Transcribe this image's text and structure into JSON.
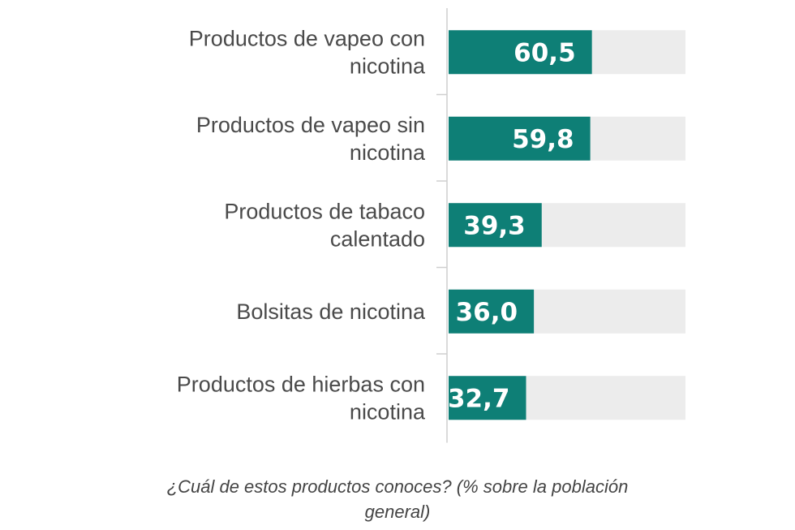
{
  "chart_data": {
    "type": "bar",
    "orientation": "horizontal",
    "categories": [
      [
        "Productos de vapeo con",
        "nicotina"
      ],
      [
        "Productos de vapeo sin",
        "nicotina"
      ],
      [
        "Productos de tabaco",
        "calentado"
      ],
      [
        "Bolsitas de nicotina"
      ],
      [
        "Productos de hierbas con",
        "nicotina"
      ]
    ],
    "values": [
      60.5,
      59.8,
      39.3,
      36.0,
      32.7
    ],
    "value_labels": [
      "60,5",
      "59,8",
      "39,3",
      "36,0",
      "32,7"
    ],
    "xlim": [
      0,
      100
    ],
    "bar_color": "#0e7f76",
    "track_color": "#ececec",
    "grid": false,
    "legend": "none"
  },
  "caption": "¿Cuál de estos productos conoces? (% sobre la población general)"
}
